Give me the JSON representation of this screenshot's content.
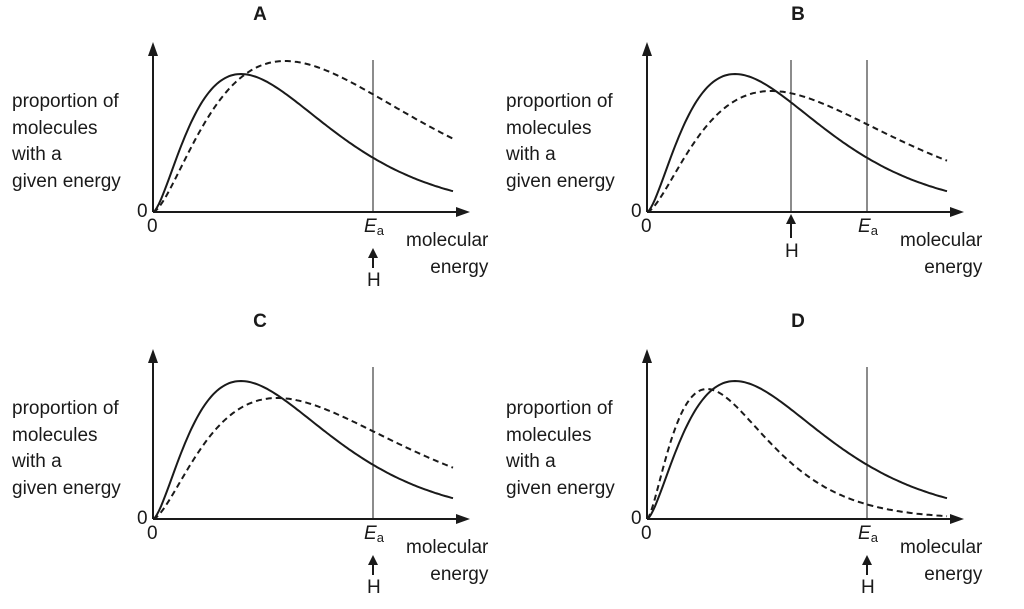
{
  "ylabel_lines": [
    "proportion of",
    "molecules",
    "with a",
    "given energy"
  ],
  "xlabel_lines": [
    "molecular",
    "energy"
  ],
  "origin_y": "0",
  "origin_x": "0",
  "ea_symbol": "E",
  "ea_subscript": "a",
  "h_label": "H",
  "panels": [
    {
      "label": "A",
      "h_position": "at-Ea",
      "solid": {
        "peak_x": 88,
        "peak_y": 138
      },
      "dashed": {
        "peak_x": 132,
        "peak_y": 151
      }
    },
    {
      "label": "B",
      "h_position": "below-Ea",
      "solid": {
        "peak_x": 88,
        "peak_y": 138
      },
      "dashed": {
        "peak_x": 124,
        "peak_y": 121
      }
    },
    {
      "label": "C",
      "h_position": "at-Ea",
      "solid": {
        "peak_x": 88,
        "peak_y": 138
      },
      "dashed": {
        "peak_x": 124,
        "peak_y": 121
      }
    },
    {
      "label": "D",
      "h_position": "at-Ea",
      "solid": {
        "peak_x": 88,
        "peak_y": 138
      },
      "dashed": {
        "peak_x": 60,
        "peak_y": 130
      }
    }
  ]
}
